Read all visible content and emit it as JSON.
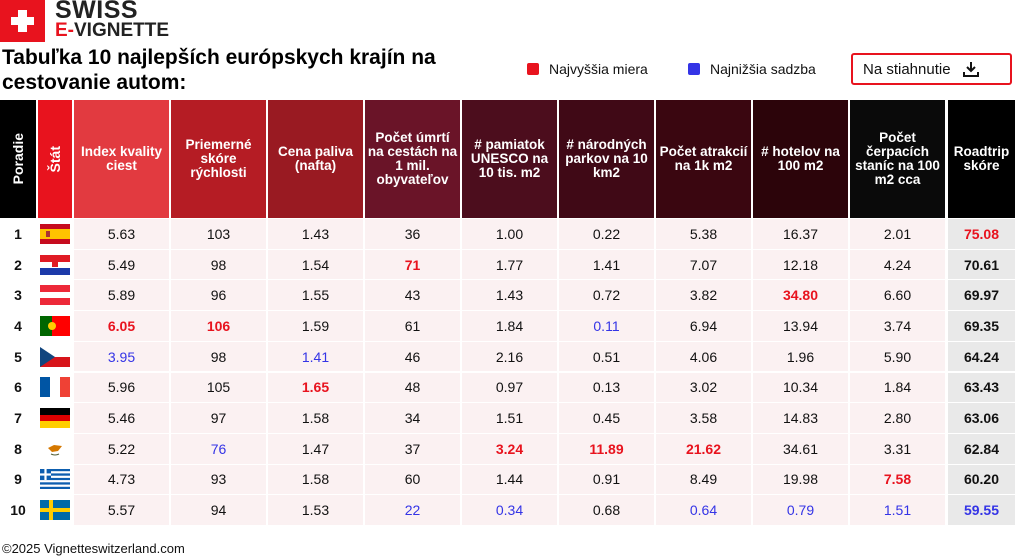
{
  "header": {
    "brand": {
      "line1": "SWISS",
      "line2_prefix": "E-",
      "line2_rest": "VIGNETTE"
    },
    "title": "Tabuľka 10 najlepších európskych krajín na cestovanie autom:",
    "legend": [
      {
        "label": "Najvyššia miera",
        "color": "#e8131e"
      },
      {
        "label": "Najnižšia sadzba",
        "color": "#3434e6"
      }
    ],
    "button": "Na stiahnutie"
  },
  "table": {
    "columns": [
      {
        "label": "Poradie",
        "color": "#000000",
        "vertical": true
      },
      {
        "label": "Štát",
        "color": "#e8131e",
        "vertical": true
      },
      {
        "label": "Index kvality ciest",
        "color": "#e23a40"
      },
      {
        "label": "Priemerné skóre rýchlosti",
        "color": "#b51c24"
      },
      {
        "label": "Cena paliva (nafta)",
        "color": "#991a22"
      },
      {
        "label": "Počet úmrtí na cestách na 1 mil. obyvateľov",
        "color": "#6a1428"
      },
      {
        "label": "# pamiatok UNESCO na 10 tis. m2",
        "color": "#4c0d1d"
      },
      {
        "label": "# národných parkov na 10 km2",
        "color": "#400916"
      },
      {
        "label": "Počet atrakcií na 1k m2",
        "color": "#3a0610"
      },
      {
        "label": "# hotelov na 100 m2",
        "color": "#2c040a"
      },
      {
        "label": "Počet čerpacích staníc na 100 m2 cca",
        "color": "#0a0a0a"
      },
      {
        "label": "Roadtrip skóre",
        "color": "#000000"
      }
    ],
    "rows": [
      {
        "rank": "1",
        "cells": [
          "5.63",
          "103",
          "1.43",
          "36",
          "1.00",
          "0.22",
          "5.38",
          "16.37",
          "2.01",
          "75.08"
        ],
        "high": [
          9
        ],
        "low": []
      },
      {
        "rank": "2",
        "cells": [
          "5.49",
          "98",
          "1.54",
          "71",
          "1.77",
          "1.41",
          "7.07",
          "12.18",
          "4.24",
          "70.61"
        ],
        "high": [
          3
        ],
        "low": []
      },
      {
        "rank": "3",
        "cells": [
          "5.89",
          "96",
          "1.55",
          "43",
          "1.43",
          "0.72",
          "3.82",
          "34.80",
          "6.60",
          "69.97"
        ],
        "high": [
          7
        ],
        "low": []
      },
      {
        "rank": "4",
        "cells": [
          "6.05",
          "106",
          "1.59",
          "61",
          "1.84",
          "0.11",
          "6.94",
          "13.94",
          "3.74",
          "69.35"
        ],
        "high": [
          0,
          1
        ],
        "low": [
          5
        ]
      },
      {
        "rank": "5",
        "cells": [
          "3.95",
          "98",
          "1.41",
          "46",
          "2.16",
          "0.51",
          "4.06",
          "1.96",
          "5.90",
          "64.24"
        ],
        "high": [],
        "low": [
          0,
          2
        ]
      },
      {
        "rank": "6",
        "cells": [
          "5.96",
          "105",
          "1.65",
          "48",
          "0.97",
          "0.13",
          "3.02",
          "10.34",
          "1.84",
          "63.43"
        ],
        "high": [
          2
        ],
        "low": []
      },
      {
        "rank": "7",
        "cells": [
          "5.46",
          "97",
          "1.58",
          "34",
          "1.51",
          "0.45",
          "3.58",
          "14.83",
          "2.80",
          "63.06"
        ],
        "high": [],
        "low": []
      },
      {
        "rank": "8",
        "cells": [
          "5.22",
          "76",
          "1.47",
          "37",
          "3.24",
          "11.89",
          "21.62",
          "34.61",
          "3.31",
          "62.84"
        ],
        "high": [
          4,
          5,
          6
        ],
        "low": [
          1
        ]
      },
      {
        "rank": "9",
        "cells": [
          "4.73",
          "93",
          "1.58",
          "60",
          "1.44",
          "0.91",
          "8.49",
          "19.98",
          "7.58",
          "60.20"
        ],
        "high": [
          8
        ],
        "low": []
      },
      {
        "rank": "10",
        "cells": [
          "5.57",
          "94",
          "1.53",
          "22",
          "0.34",
          "0.68",
          "0.64",
          "0.79",
          "1.51",
          "59.55"
        ],
        "high": [],
        "low": [
          3,
          4,
          6,
          7,
          8,
          9
        ]
      }
    ]
  },
  "footer": "©2025 Vignetteswitzerland.com"
}
